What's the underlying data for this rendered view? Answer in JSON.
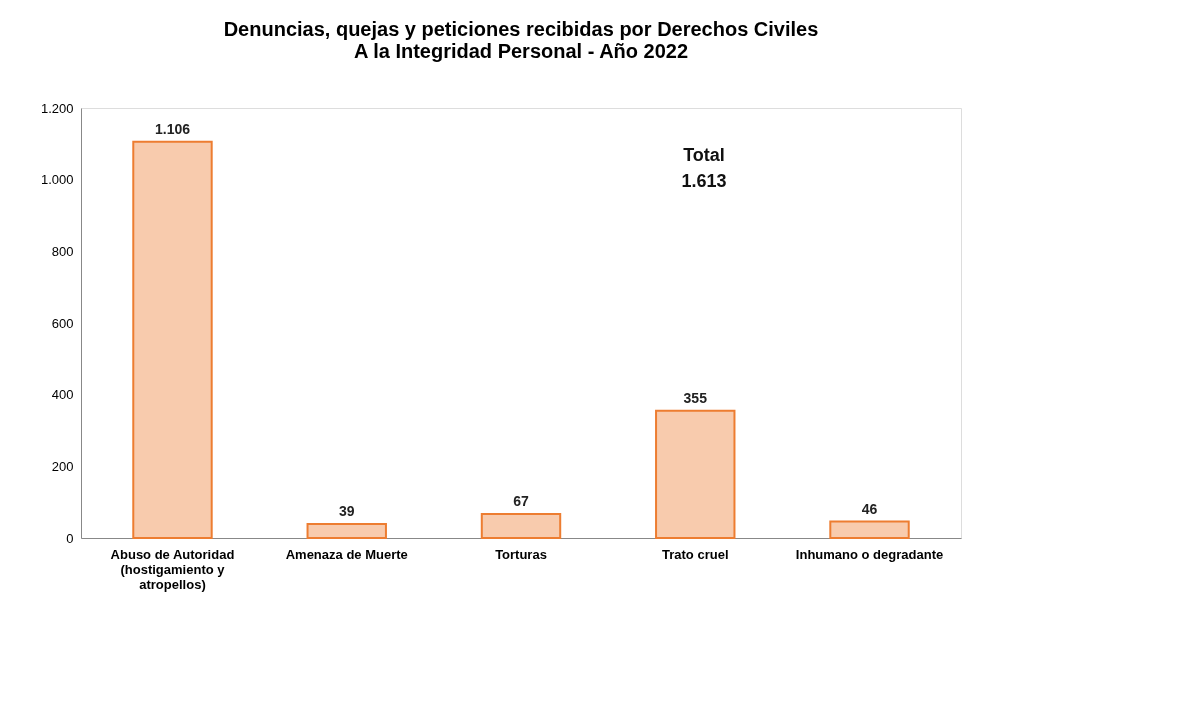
{
  "chart_data": {
    "type": "bar",
    "title": "Denuncias, quejas y peticiones recibidas por Derechos Civiles\nA la Integridad Personal  - Año 2022",
    "categories": [
      "Abuso de Autoridad (hostigamiento y atropellos)",
      "Amenaza de Muerte",
      "Torturas",
      "Trato cruel",
      "Inhumano o degradante"
    ],
    "values": [
      1106,
      39,
      67,
      355,
      46
    ],
    "value_labels": [
      "1.106",
      "39",
      "67",
      "355",
      "46"
    ],
    "color": "#f8cbad",
    "ylim": [
      0,
      1200
    ],
    "yticks": [
      0,
      200,
      400,
      600,
      800,
      {
        "value": 1000,
        "label": "1.000"
      },
      {
        "value": 1200,
        "label": "1.200"
      }
    ],
    "annotations": [
      "Total\n1.613"
    ],
    "grid": false
  }
}
